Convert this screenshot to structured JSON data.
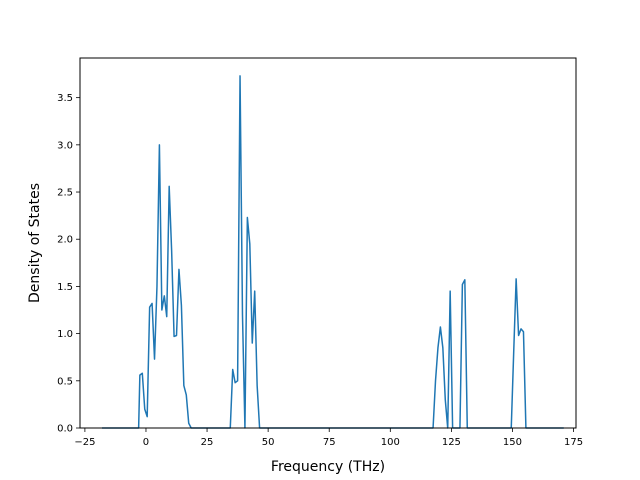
{
  "chart_data": {
    "type": "line",
    "title": "",
    "xlabel": "Frequency (THz)",
    "ylabel": "Density of States",
    "xlim": [
      -27,
      176
    ],
    "ylim": [
      0,
      3.92
    ],
    "xticks": [
      -25,
      0,
      25,
      50,
      75,
      100,
      125,
      150,
      175
    ],
    "xtick_labels": [
      "−25",
      "0",
      "25",
      "50",
      "75",
      "100",
      "125",
      "150",
      "175"
    ],
    "yticks": [
      0.0,
      0.5,
      1.0,
      1.5,
      2.0,
      2.5,
      3.0,
      3.5
    ],
    "ytick_labels": [
      "0.0",
      "0.5",
      "1.0",
      "1.5",
      "2.0",
      "2.5",
      "3.0",
      "3.5"
    ],
    "grid": false,
    "legend": "none",
    "series_color": "#1f77b4",
    "series": [
      {
        "x": [
          -18,
          -3,
          -2.5,
          -1.5,
          -0.5,
          0.5,
          1.5,
          2.5,
          3.5,
          4.5,
          5.5,
          6.5,
          7.5,
          8.5,
          9.5,
          10.5,
          11.5,
          12.5,
          13.5,
          14.5,
          15.5,
          16.5,
          17.5,
          18.5,
          19.5,
          20.5,
          34.5,
          35.5,
          36.5,
          37.5,
          38.5,
          39.5,
          40.5,
          41.5,
          42.5,
          43.5,
          44.5,
          45.5,
          46.5,
          47.5,
          117.5,
          118.5,
          119.5,
          120.5,
          121.5,
          122.5,
          123.5,
          124.5,
          125.5,
          126.5,
          128.5,
          129.5,
          130.5,
          131.5,
          132.5,
          133.5,
          149.5,
          150.5,
          151.5,
          152.5,
          153.5,
          154.5,
          155.5,
          156.5,
          171
        ],
        "y": [
          0,
          0,
          0.56,
          0.58,
          0.2,
          0.12,
          1.28,
          1.32,
          0.73,
          1.5,
          3.0,
          1.25,
          1.4,
          1.18,
          2.56,
          1.88,
          0.97,
          0.98,
          1.68,
          1.3,
          0.45,
          0.35,
          0.05,
          0,
          0,
          0,
          0,
          0.62,
          0.48,
          0.5,
          3.73,
          1.2,
          0,
          2.23,
          1.95,
          0.9,
          1.45,
          0.45,
          0,
          0,
          0,
          0.5,
          0.85,
          1.07,
          0.85,
          0.3,
          0,
          1.45,
          0,
          0,
          0,
          1.52,
          1.57,
          0,
          0,
          0,
          0,
          0.8,
          1.58,
          0.98,
          1.05,
          1.02,
          0,
          0,
          0
        ]
      }
    ]
  }
}
